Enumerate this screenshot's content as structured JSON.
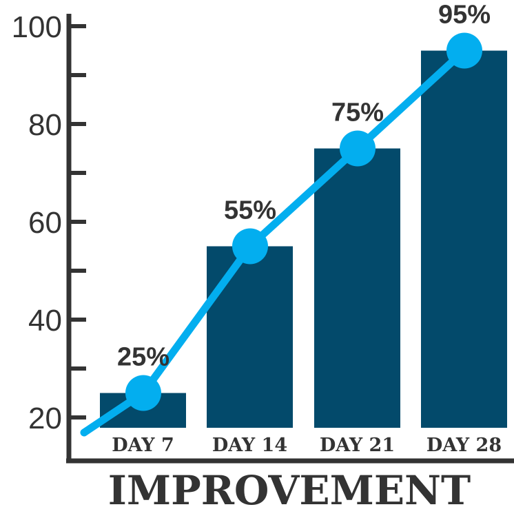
{
  "chart_data": {
    "type": "bar",
    "title": "",
    "xlabel": "IMPROVEMENT",
    "ylabel": "",
    "categories": [
      "DAY 7",
      "DAY 14",
      "DAY 21",
      "DAY 28"
    ],
    "values": [
      25,
      55,
      75,
      95
    ],
    "data_labels": [
      "25%",
      "55%",
      "75%",
      "95%"
    ],
    "line_overlay": {
      "values": [
        25,
        55,
        75,
        95
      ]
    },
    "yticks": [
      20,
      40,
      60,
      80,
      100
    ],
    "ylim": [
      11,
      100
    ],
    "grid": false,
    "colors": {
      "bar": "#034a6b",
      "line": "#03aeef",
      "text": "#333333"
    }
  }
}
